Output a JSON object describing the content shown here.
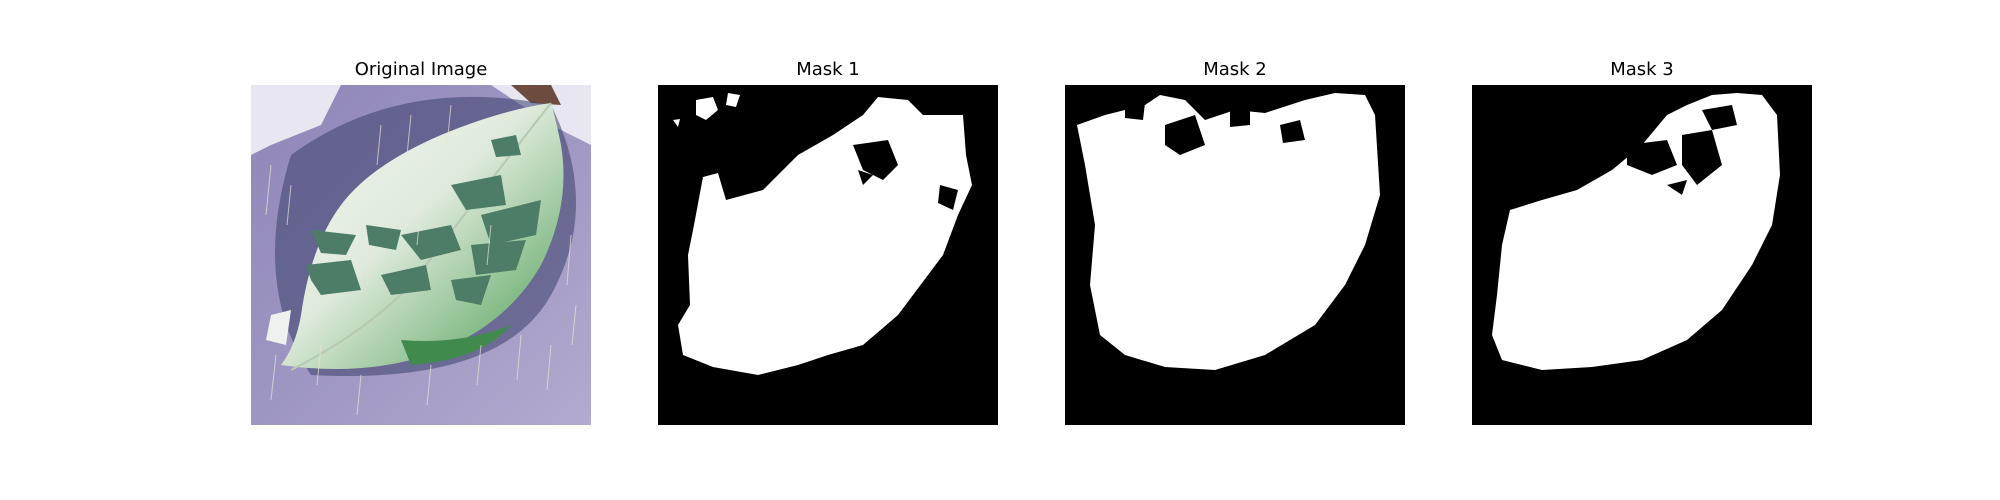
{
  "figure": {
    "panels": [
      {
        "title": "Original Image"
      },
      {
        "title": "Mask 1"
      },
      {
        "title": "Mask 2"
      },
      {
        "title": "Mask 3"
      }
    ]
  },
  "colors": {
    "mask_foreground": "#ffffff",
    "mask_background": "#000000",
    "photo_background": "#a59cc4",
    "leaf_light": "#e8f0e6",
    "leaf_green": "#4f9a5a",
    "lesion": "#4d7c67"
  }
}
